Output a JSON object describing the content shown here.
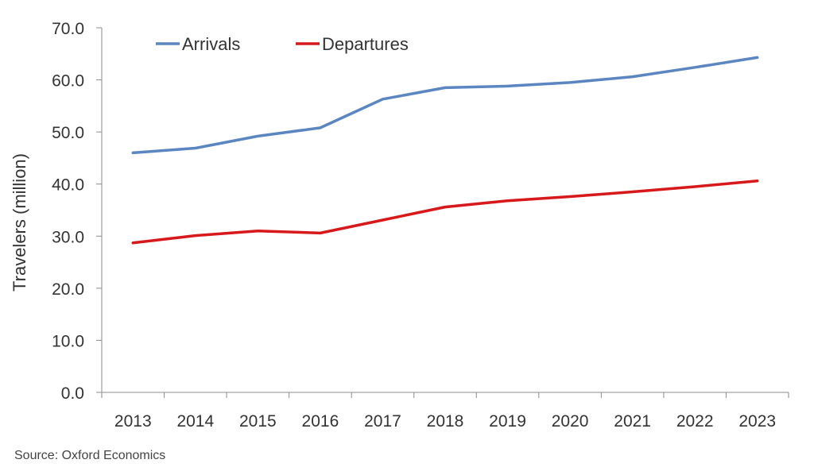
{
  "chart_data": {
    "type": "line",
    "title": "",
    "xlabel": "",
    "ylabel": "Travelers (million)",
    "categories": [
      "2013",
      "2014",
      "2015",
      "2016",
      "2017",
      "2018",
      "2019",
      "2020",
      "2021",
      "2022",
      "2023"
    ],
    "yticks": [
      "0.0",
      "10.0",
      "20.0",
      "30.0",
      "40.0",
      "50.0",
      "60.0",
      "70.0"
    ],
    "ylim": [
      0,
      70
    ],
    "grid": false,
    "legend_position": "top-left",
    "series": [
      {
        "name": "Arrivals",
        "color": "#5b86c1",
        "values": [
          46.0,
          46.9,
          49.2,
          50.8,
          56.3,
          58.5,
          58.8,
          59.5,
          60.6,
          62.4,
          64.3
        ]
      },
      {
        "name": "Departures",
        "color": "#d7191c",
        "values": [
          28.7,
          30.1,
          31.0,
          30.6,
          33.1,
          35.6,
          36.8,
          37.6,
          38.5,
          39.5,
          40.6
        ]
      }
    ]
  },
  "source": "Source:  Oxford Economics"
}
